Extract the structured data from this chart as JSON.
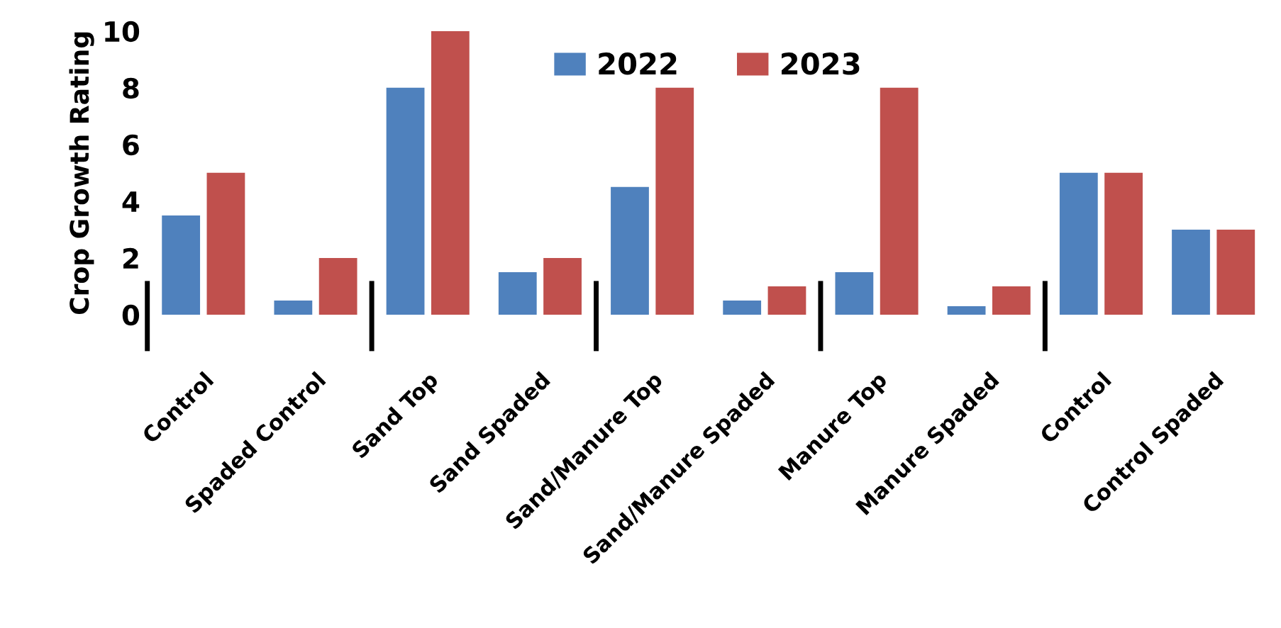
{
  "chart_data": {
    "type": "bar",
    "ylabel": "Crop Growth Rating",
    "categories": [
      "Control",
      "Spaded Control",
      "Sand Top",
      "Sand Spaded",
      "Sand/Manure Top",
      "Sand/Manure Spaded",
      "Manure Top",
      "Manure Spaded",
      "Control",
      "Control Spaded"
    ],
    "series": [
      {
        "name": "2022",
        "color": "#4f81bd",
        "values": [
          3.5,
          0.5,
          8,
          1.5,
          4.5,
          0.5,
          1.5,
          0.3,
          5,
          3
        ]
      },
      {
        "name": "2023",
        "color": "#c0504d",
        "values": [
          5,
          2,
          10,
          2,
          8,
          1,
          8,
          1,
          5,
          3
        ]
      }
    ],
    "ylim": [
      0,
      10
    ],
    "yticks": [
      0,
      2,
      4,
      6,
      8,
      10
    ],
    "grid": false,
    "legend": "top"
  }
}
